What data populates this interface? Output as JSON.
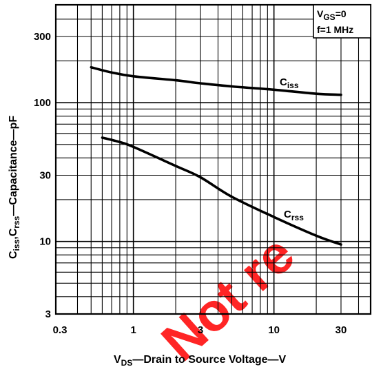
{
  "chart_data": {
    "type": "line",
    "x_scale": "log",
    "y_scale": "log",
    "xlim": [
      0.3,
      50
    ],
    "ylim": [
      3,
      500
    ],
    "x_ticks": [
      0.3,
      1,
      3,
      10,
      30
    ],
    "x_tick_labels": [
      "0.3",
      "1",
      "3",
      "10",
      "30"
    ],
    "y_ticks": [
      3,
      10,
      30,
      100,
      300
    ],
    "y_tick_labels": [
      "3",
      "10",
      "30",
      "100",
      "300"
    ],
    "grid": true,
    "xlabel": {
      "main": "V",
      "sub": "DS",
      "rest": "—Drain to Source Voltage—V"
    },
    "ylabel": {
      "c1": "C",
      "s1": "iss",
      "comma": ",",
      "c2": "C",
      "s2": "rss",
      "rest": "—Capacitance—pF"
    },
    "conditions": {
      "line1": {
        "main": "V",
        "sub": "GS",
        "rest": "=0"
      },
      "line2": "f=1 MHz"
    },
    "series": [
      {
        "name_main": "C",
        "name_sub": "iss",
        "x": [
          0.5,
          0.7,
          1,
          2,
          3,
          5,
          10,
          20,
          30
        ],
        "y": [
          180,
          165,
          155,
          145,
          138,
          131,
          124,
          116,
          114
        ]
      },
      {
        "name_main": "C",
        "name_sub": "rss",
        "x": [
          0.6,
          0.8,
          1,
          2,
          3,
          5,
          10,
          20,
          30
        ],
        "y": [
          56,
          52,
          48,
          35,
          29,
          21,
          15,
          11,
          9.5
        ]
      }
    ],
    "watermark": "Not re"
  }
}
